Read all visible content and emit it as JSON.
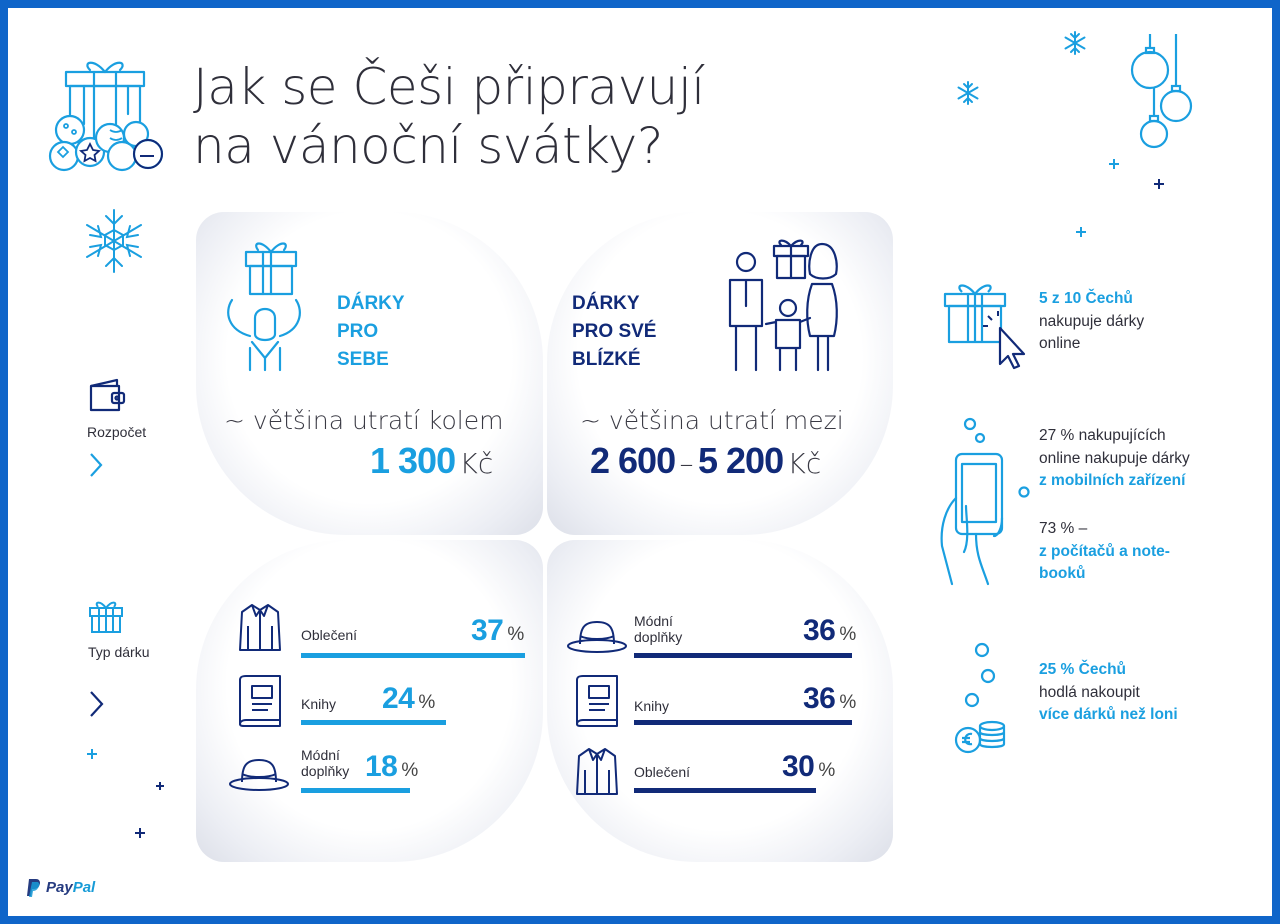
{
  "title": [
    "Jak se Češi připravují",
    "na vánoční svátky?"
  ],
  "sidebar": {
    "budget_label": "Rozpočet",
    "gift_type_label": "Typ dárku"
  },
  "self_gifts": {
    "heading": [
      "DÁRKY",
      "PRO",
      "SEBE"
    ],
    "spend_text": "~ většina utratí kolem",
    "amount": "1 300",
    "currency": "Kč",
    "items": [
      {
        "label": [
          "Oblečení"
        ],
        "value": "37",
        "unit": "%",
        "icon": "jacket-icon",
        "share": 37
      },
      {
        "label": [
          "Knihy"
        ],
        "value": "24",
        "unit": "%",
        "icon": "book-icon",
        "share": 24
      },
      {
        "label": [
          "Módní",
          "doplňky"
        ],
        "value": "18",
        "unit": "%",
        "icon": "hat-icon",
        "share": 18
      }
    ]
  },
  "loved_gifts": {
    "heading": [
      "DÁRKY",
      "PRO SVÉ",
      "BLÍZKÉ"
    ],
    "spend_text": "~ většina utratí mezi",
    "amount_from": "2 600",
    "dash": "–",
    "amount_to": "5 200",
    "currency": "Kč",
    "items": [
      {
        "label": [
          "Módní",
          "doplňky"
        ],
        "value": "36",
        "unit": "%",
        "icon": "hat-icon",
        "share": 36
      },
      {
        "label": [
          "Knihy"
        ],
        "value": "36",
        "unit": "%",
        "icon": "book-icon",
        "share": 36
      },
      {
        "label": [
          "Oblečení"
        ],
        "value": "30",
        "unit": "%",
        "icon": "jacket-icon",
        "share": 30
      }
    ]
  },
  "facts": {
    "online_highlight": "5 z 10 Čechů",
    "online_rest": [
      "nakupuje dárky",
      "online"
    ],
    "mobile_line1": "27 % nakupujících",
    "mobile_line2": "online nakupuje dárky",
    "mobile_highlight": "z mobilních zařízení",
    "pc_line": "73 % –",
    "pc_highlight": [
      "z počítačů a note-",
      "booků"
    ],
    "more_highlight": "25 % Čechů",
    "more_line": "hodlá nakoupit",
    "more_highlight2": "více dárků než loni"
  },
  "brand": {
    "part1": "Pay",
    "part2": "Pal"
  },
  "colors": {
    "cyan": "#1a9fe0",
    "navy": "#112a78",
    "border": "#0f65c9"
  }
}
